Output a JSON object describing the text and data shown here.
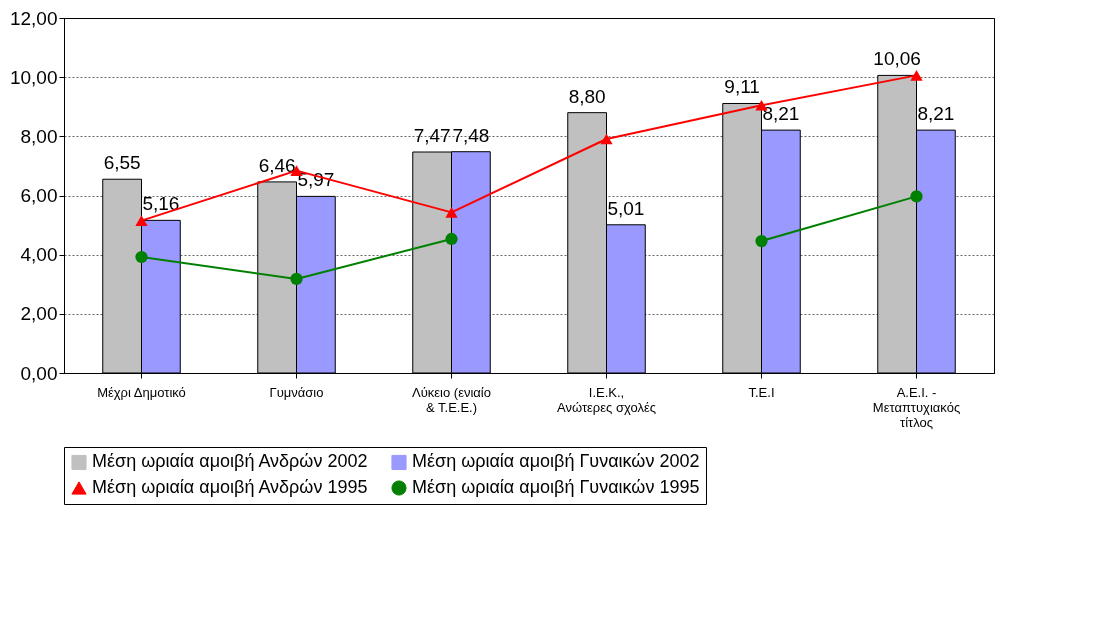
{
  "chart_data": {
    "type": "bar",
    "categories": [
      "Μέχρι Δημοτικό",
      "Γυμνάσιο",
      "Λύκειο (ενιαίο & Τ.Ε.Ε.)",
      "Ι.Ε.Κ., Ανώτερες σχολές",
      "Τ.Ε.Ι",
      "Α.Ε.Ι. - Μεταπτυχιακός τίτλος"
    ],
    "series": [
      {
        "name": "Μέση ωριαία αμοιβή Ανδρών 2002",
        "color": "#c0c0c0",
        "values": [
          6.55,
          6.46,
          7.47,
          8.8,
          9.11,
          10.06
        ],
        "value_labels": [
          "6,55",
          "6,46",
          "7,47",
          "8,80",
          "9,11",
          "10,06"
        ]
      },
      {
        "name": "Μέση ωριαία αμοιβή Γυναικών 2002",
        "color": "#9999ff",
        "values": [
          5.16,
          5.97,
          7.48,
          5.01,
          8.21,
          8.21
        ],
        "value_labels": [
          "5,16",
          "5,97",
          "7,48",
          "5,01",
          "8,21",
          "8,21"
        ]
      },
      {
        "name": "Μέση ωριαία αμοιβή Ανδρών 1995",
        "type": "line",
        "marker": "triangle",
        "color": "#ff0000",
        "values": [
          5.15,
          6.84,
          5.43,
          7.91,
          9.05,
          10.06
        ]
      },
      {
        "name": "Μέση ωριαία αμοιβή Γυναικών 1995",
        "type": "line",
        "marker": "circle",
        "color": "#008000",
        "values": [
          3.92,
          3.18,
          4.53,
          null,
          4.46,
          5.97
        ]
      }
    ],
    "ylim": [
      0,
      12
    ],
    "yticks": [
      {
        "value": 0,
        "label": "0,00"
      },
      {
        "value": 2,
        "label": "2,00"
      },
      {
        "value": 4,
        "label": "4,00"
      },
      {
        "value": 6,
        "label": "6,00"
      },
      {
        "value": 8,
        "label": "8,00"
      },
      {
        "value": 10,
        "label": "10,00"
      },
      {
        "value": 12,
        "label": "12,00"
      }
    ],
    "grid": "y",
    "legend": "bottom"
  }
}
